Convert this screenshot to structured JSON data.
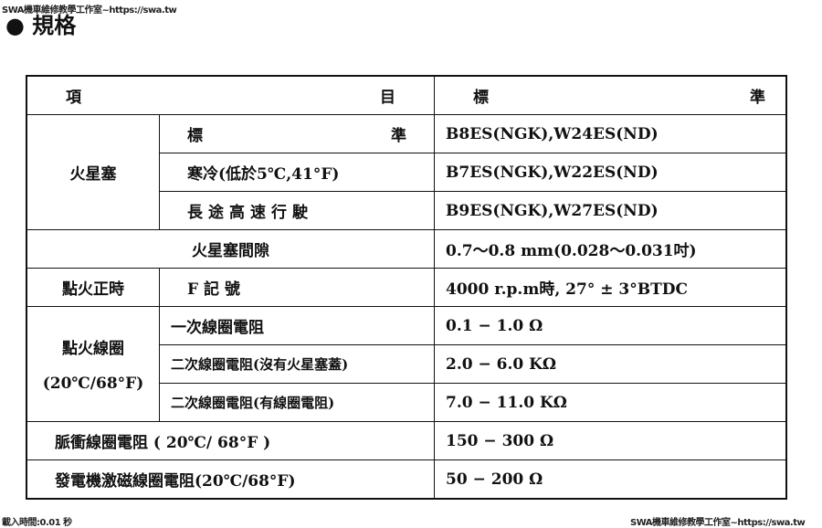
{
  "watermark_top": "SWA機車維修教學工作室~https://swa.tw",
  "watermark_bottom": "SWA機車維修教學工作室~https://swa.tw",
  "load_time": "載入時間:0.01 秒",
  "title": "● 規格",
  "header": {
    "item_left": "項",
    "item_right": "目",
    "std_left": "標",
    "std_right": "準"
  },
  "spark_plug": {
    "label": "火星塞",
    "rows": [
      {
        "name_left": "標",
        "name_right": "準",
        "value": "B8ES(NGK),W24ES(ND)"
      },
      {
        "name": "寒冷(低於5℃,41°F)",
        "value": "B7ES(NGK),W22ES(ND)"
      },
      {
        "name": "長途高速行駛",
        "value": "B9ES(NGK),W27ES(ND)"
      }
    ]
  },
  "gap": {
    "label": "火星塞間隙",
    "value": "0.7～0.8 mm(0.028～0.031吋)"
  },
  "timing": {
    "label": "點火正時",
    "name": "F 記 號",
    "value": "4000 r.p.m時, 27° ± 3°BTDC"
  },
  "coil": {
    "label": "點火線圈",
    "label2": "(20℃/68°F)",
    "rows": [
      {
        "name": "一次線圈電阻",
        "value": "0.1 − 1.0 Ω"
      },
      {
        "name": "二次線圈電阻(沒有火星塞蓋)",
        "value": "2.0 − 6.0 KΩ"
      },
      {
        "name": "二次線圈電阻(有線圈電阻)",
        "value": "7.0 − 11.0 KΩ"
      }
    ]
  },
  "pulse": {
    "label": "脈衝線圈電阻 ( 20℃/ 68°F )",
    "value": "150 − 300 Ω"
  },
  "exciter": {
    "label": "發電機激磁線圈電阻(20℃/68°F)",
    "value": "50 − 200 Ω"
  }
}
